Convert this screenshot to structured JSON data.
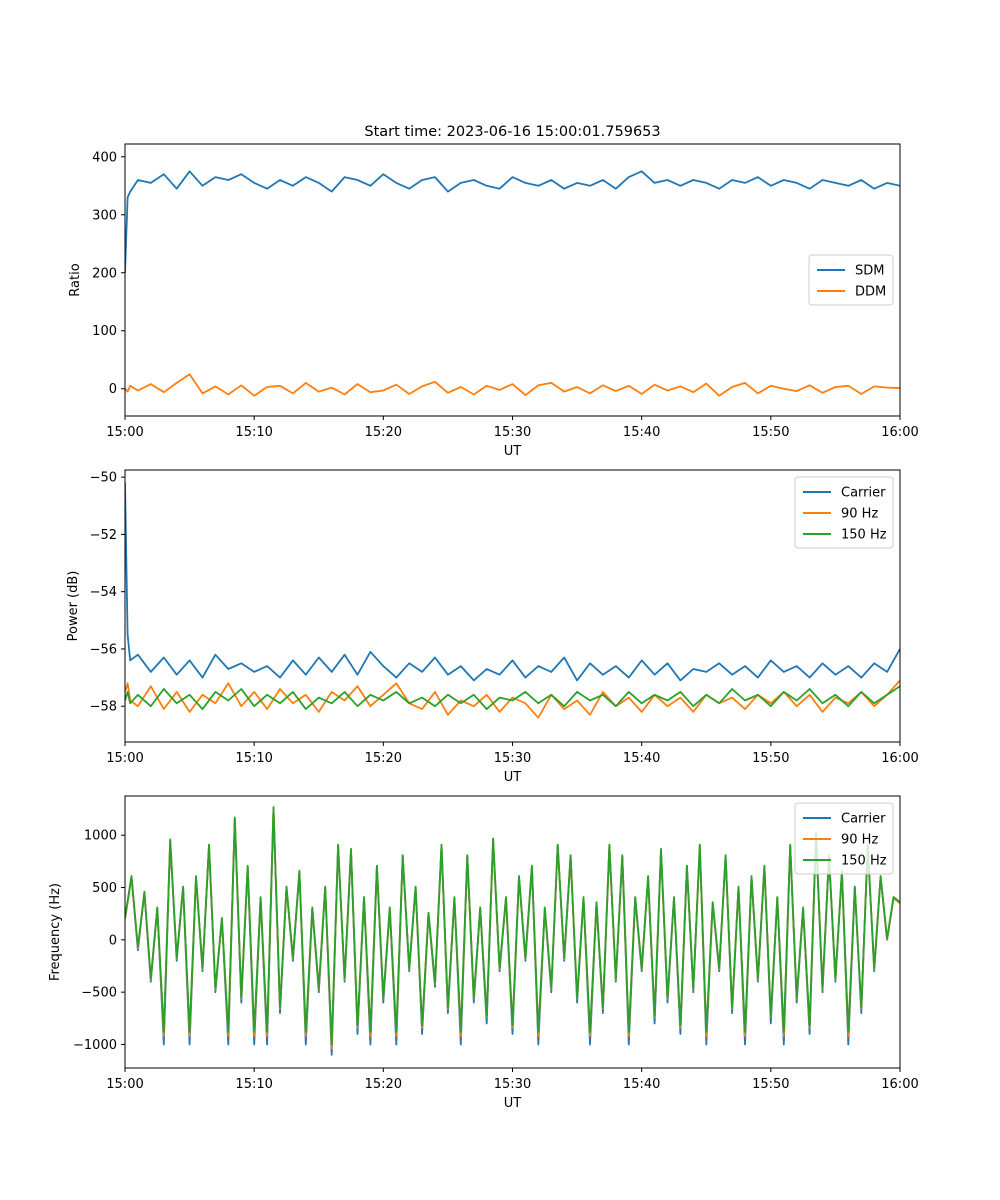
{
  "figure": {
    "title": "Start time: 2023-06-16 15:00:01.759653"
  },
  "chart_data": [
    {
      "type": "line",
      "title": "Start time: 2023-06-16 15:00:01.759653",
      "xlabel": "UT",
      "ylabel": "Ratio",
      "xlim": [
        "15:00",
        "16:00"
      ],
      "ylim": [
        -47,
        422
      ],
      "xticks": [
        "15:00",
        "15:10",
        "15:20",
        "15:30",
        "15:40",
        "15:50",
        "16:00"
      ],
      "yticks": [
        400,
        300,
        200,
        100,
        0
      ],
      "ytick_labels": [
        "400",
        "300",
        "200",
        "100",
        "0"
      ],
      "legend": {
        "position": "center-right"
      },
      "x_minutes": [
        0,
        0.2,
        0.4,
        1,
        2,
        3,
        4,
        5,
        6,
        7,
        8,
        9,
        10,
        11,
        12,
        13,
        14,
        15,
        16,
        17,
        18,
        19,
        20,
        21,
        22,
        23,
        24,
        25,
        26,
        27,
        28,
        29,
        30,
        31,
        32,
        33,
        34,
        35,
        36,
        37,
        38,
        39,
        40,
        41,
        42,
        43,
        44,
        45,
        46,
        47,
        48,
        49,
        50,
        51,
        52,
        53,
        54,
        55,
        56,
        57,
        58,
        59,
        60
      ],
      "series": [
        {
          "name": "SDM",
          "color": "#1f77b4",
          "values": [
            200,
            330,
            340,
            360,
            355,
            370,
            345,
            375,
            350,
            365,
            360,
            370,
            355,
            345,
            360,
            350,
            365,
            355,
            340,
            365,
            360,
            350,
            370,
            355,
            345,
            360,
            365,
            340,
            355,
            360,
            350,
            345,
            365,
            355,
            350,
            360,
            345,
            355,
            350,
            360,
            345,
            365,
            375,
            355,
            360,
            350,
            360,
            355,
            345,
            360,
            355,
            365,
            350,
            360,
            355,
            345,
            360,
            355,
            350,
            360,
            345,
            355,
            350
          ]
        },
        {
          "name": "DDM",
          "color": "#ff7f0e",
          "values": [
            0,
            -5,
            5,
            -3,
            8,
            -6,
            10,
            25,
            -8,
            4,
            -10,
            6,
            -12,
            3,
            5,
            -8,
            10,
            -5,
            2,
            -10,
            8,
            -6,
            -3,
            7,
            -9,
            4,
            12,
            -7,
            3,
            -10,
            5,
            -2,
            8,
            -11,
            6,
            10,
            -5,
            3,
            -8,
            6,
            -4,
            5,
            -9,
            7,
            -3,
            4,
            -6,
            9,
            -12,
            3,
            10,
            -8,
            5,
            0,
            -4,
            6,
            -7,
            3,
            5,
            -9,
            4,
            2,
            1
          ]
        }
      ]
    },
    {
      "type": "line",
      "xlabel": "UT",
      "ylabel": "Power (dB)",
      "xlim": [
        "15:00",
        "16:00"
      ],
      "ylim": [
        -59.25,
        -49.75
      ],
      "xticks": [
        "15:00",
        "15:10",
        "15:20",
        "15:30",
        "15:40",
        "15:50",
        "16:00"
      ],
      "yticks": [
        -50,
        -52,
        -54,
        -56,
        -58
      ],
      "ytick_labels": [
        "−50",
        "−52",
        "−54",
        "−56",
        "−58"
      ],
      "legend": {
        "position": "top-right"
      },
      "x_minutes": [
        0,
        0.2,
        0.4,
        1,
        2,
        3,
        4,
        5,
        6,
        7,
        8,
        9,
        10,
        11,
        12,
        13,
        14,
        15,
        16,
        17,
        18,
        19,
        20,
        21,
        22,
        23,
        24,
        25,
        26,
        27,
        28,
        29,
        30,
        31,
        32,
        33,
        34,
        35,
        36,
        37,
        38,
        39,
        40,
        41,
        42,
        43,
        44,
        45,
        46,
        47,
        48,
        49,
        50,
        51,
        52,
        53,
        54,
        55,
        56,
        57,
        58,
        59,
        60
      ],
      "series": [
        {
          "name": "Carrier",
          "color": "#1f77b4",
          "values": [
            -50.2,
            -55.5,
            -56.4,
            -56.2,
            -56.8,
            -56.3,
            -56.9,
            -56.4,
            -57.0,
            -56.2,
            -56.7,
            -56.5,
            -56.8,
            -56.6,
            -57.0,
            -56.4,
            -56.9,
            -56.3,
            -56.8,
            -56.2,
            -56.9,
            -56.1,
            -56.6,
            -57.0,
            -56.5,
            -56.8,
            -56.3,
            -56.9,
            -56.6,
            -57.1,
            -56.7,
            -56.9,
            -56.4,
            -57.0,
            -56.6,
            -56.8,
            -56.3,
            -57.1,
            -56.5,
            -56.9,
            -56.6,
            -57.0,
            -56.4,
            -56.9,
            -56.5,
            -57.1,
            -56.7,
            -56.8,
            -56.5,
            -56.9,
            -56.6,
            -57.0,
            -56.4,
            -56.8,
            -56.6,
            -57.0,
            -56.5,
            -56.9,
            -56.6,
            -57.0,
            -56.5,
            -56.8,
            -56.0
          ]
        },
        {
          "name": "90 Hz",
          "color": "#ff7f0e",
          "values": [
            -57.5,
            -57.2,
            -57.8,
            -58.0,
            -57.3,
            -58.1,
            -57.5,
            -58.2,
            -57.6,
            -57.9,
            -57.2,
            -58.0,
            -57.5,
            -58.1,
            -57.4,
            -57.9,
            -57.6,
            -58.2,
            -57.5,
            -57.8,
            -57.3,
            -58.0,
            -57.6,
            -57.2,
            -57.9,
            -58.1,
            -57.5,
            -58.3,
            -57.8,
            -58.0,
            -57.6,
            -58.2,
            -57.7,
            -57.9,
            -58.4,
            -57.6,
            -58.1,
            -57.8,
            -58.3,
            -57.5,
            -58.0,
            -57.7,
            -58.2,
            -57.6,
            -58.0,
            -57.7,
            -58.2,
            -57.6,
            -57.9,
            -57.7,
            -58.1,
            -57.6,
            -57.9,
            -57.5,
            -58.0,
            -57.6,
            -58.2,
            -57.7,
            -57.9,
            -57.5,
            -58.0,
            -57.6,
            -57.1
          ]
        },
        {
          "name": "150 Hz",
          "color": "#2ca02c",
          "values": [
            -57.8,
            -57.5,
            -57.9,
            -57.6,
            -58.0,
            -57.4,
            -57.9,
            -57.6,
            -58.1,
            -57.5,
            -57.8,
            -57.4,
            -58.0,
            -57.6,
            -57.9,
            -57.5,
            -58.1,
            -57.7,
            -57.9,
            -57.5,
            -58.0,
            -57.6,
            -57.8,
            -57.5,
            -57.9,
            -57.7,
            -58.0,
            -57.6,
            -57.9,
            -57.6,
            -58.1,
            -57.7,
            -57.8,
            -57.5,
            -57.9,
            -57.6,
            -58.0,
            -57.5,
            -57.8,
            -57.6,
            -58.0,
            -57.5,
            -57.9,
            -57.6,
            -57.8,
            -57.5,
            -58.0,
            -57.6,
            -57.9,
            -57.4,
            -57.8,
            -57.6,
            -58.0,
            -57.5,
            -57.8,
            -57.4,
            -57.9,
            -57.6,
            -58.0,
            -57.5,
            -57.9,
            -57.6,
            -57.3
          ]
        }
      ]
    },
    {
      "type": "line",
      "xlabel": "UT",
      "ylabel": "Frequency (Hz)",
      "xlim": [
        "15:00",
        "16:00"
      ],
      "ylim": [
        -1225,
        1375
      ],
      "xticks": [
        "15:00",
        "15:10",
        "15:20",
        "15:30",
        "15:40",
        "15:50",
        "16:00"
      ],
      "yticks": [
        1000,
        500,
        0,
        -500,
        -1000
      ],
      "ytick_labels": [
        "1000",
        "500",
        "0",
        "−500",
        "−1000"
      ],
      "legend": {
        "position": "top-right"
      },
      "x_minutes": [
        0,
        0.5,
        1,
        1.5,
        2,
        2.5,
        3,
        3.5,
        4,
        4.5,
        5,
        5.5,
        6,
        6.5,
        7,
        7.5,
        8,
        8.5,
        9,
        9.5,
        10,
        10.5,
        11,
        11.5,
        12,
        12.5,
        13,
        13.5,
        14,
        14.5,
        15,
        15.5,
        16,
        16.5,
        17,
        17.5,
        18,
        18.5,
        19,
        19.5,
        20,
        20.5,
        21,
        21.5,
        22,
        22.5,
        23,
        23.5,
        24,
        24.5,
        25,
        25.5,
        26,
        26.5,
        27,
        27.5,
        28,
        28.5,
        29,
        29.5,
        30,
        30.5,
        31,
        31.5,
        32,
        32.5,
        33,
        33.5,
        34,
        34.5,
        35,
        35.5,
        36,
        36.5,
        37,
        37.5,
        38,
        38.5,
        39,
        39.5,
        40,
        40.5,
        41,
        41.5,
        42,
        42.5,
        43,
        43.5,
        44,
        44.5,
        45,
        45.5,
        46,
        46.5,
        47,
        47.5,
        48,
        48.5,
        49,
        49.5,
        50,
        50.5,
        51,
        51.5,
        52,
        52.5,
        53,
        53.5,
        54,
        54.5,
        55,
        55.5,
        56,
        56.5,
        57,
        57.5,
        58,
        58.5,
        59,
        59.5,
        60
      ],
      "series": [
        {
          "name": "Carrier",
          "color": "#1f77b4",
          "values": [
            200,
            600,
            -100,
            450,
            -400,
            300,
            -1000,
            950,
            -200,
            500,
            -1000,
            600,
            -300,
            900,
            -500,
            200,
            -1000,
            1150,
            -600,
            700,
            -1000,
            400,
            -1000,
            1250,
            -700,
            500,
            -200,
            650,
            -1000,
            300,
            -500,
            500,
            -1100,
            900,
            -400,
            850,
            -900,
            400,
            -1000,
            700,
            -600,
            300,
            -1000,
            800,
            -300,
            500,
            -900,
            250,
            -450,
            900,
            -700,
            400,
            -1000,
            800,
            -600,
            300,
            -800,
            950,
            -300,
            400,
            -900,
            600,
            -200,
            700,
            -1000,
            300,
            -500,
            900,
            -200,
            800,
            -600,
            400,
            -1000,
            350,
            -700,
            900,
            -400,
            800,
            -1000,
            400,
            -300,
            600,
            -800,
            850,
            -600,
            400,
            -900,
            700,
            -500,
            900,
            -1000,
            350,
            -300,
            800,
            -700,
            500,
            -1000,
            600,
            -400,
            700,
            -800,
            400,
            -1000,
            900,
            -600,
            300,
            -900,
            1000,
            -500,
            800,
            -400,
            650,
            -1000,
            500,
            -700,
            900,
            -300,
            600,
            0,
            400,
            350
          ]
        },
        {
          "name": "90 Hz",
          "color": "#ff7f0e",
          "values": [
            200,
            600,
            -80,
            450,
            -380,
            300,
            -920,
            950,
            -180,
            500,
            -920,
            600,
            -280,
            900,
            -470,
            200,
            -920,
            1160,
            -560,
            700,
            -920,
            400,
            -920,
            1260,
            -660,
            500,
            -180,
            650,
            -920,
            300,
            -470,
            500,
            -1040,
            900,
            -380,
            860,
            -840,
            400,
            -920,
            700,
            -560,
            300,
            -920,
            800,
            -280,
            500,
            -840,
            250,
            -420,
            900,
            -660,
            400,
            -920,
            800,
            -560,
            300,
            -740,
            960,
            -280,
            400,
            -840,
            600,
            -180,
            700,
            -920,
            300,
            -470,
            900,
            -180,
            800,
            -560,
            400,
            -920,
            350,
            -660,
            900,
            -380,
            800,
            -920,
            400,
            -280,
            600,
            -740,
            860,
            -560,
            400,
            -840,
            700,
            -470,
            900,
            -920,
            350,
            -280,
            800,
            -660,
            500,
            -920,
            600,
            -380,
            700,
            -740,
            400,
            -920,
            900,
            -560,
            300,
            -840,
            1010,
            -470,
            800,
            -380,
            650,
            -920,
            500,
            -660,
            900,
            -280,
            600,
            0,
            400,
            350
          ]
        },
        {
          "name": "150 Hz",
          "color": "#2ca02c",
          "values": [
            210,
            610,
            -70,
            460,
            -370,
            310,
            -880,
            960,
            -170,
            510,
            -880,
            610,
            -270,
            910,
            -460,
            210,
            -880,
            1170,
            -550,
            710,
            -880,
            410,
            -880,
            1270,
            -650,
            510,
            -170,
            660,
            -880,
            310,
            -460,
            510,
            -1000,
            910,
            -370,
            870,
            -820,
            410,
            -880,
            710,
            -550,
            310,
            -880,
            810,
            -270,
            510,
            -820,
            260,
            -410,
            910,
            -650,
            410,
            -880,
            810,
            -550,
            310,
            -730,
            970,
            -270,
            410,
            -820,
            610,
            -170,
            710,
            -880,
            310,
            -460,
            910,
            -170,
            810,
            -550,
            410,
            -880,
            360,
            -650,
            910,
            -370,
            810,
            -880,
            410,
            -270,
            610,
            -730,
            870,
            -550,
            410,
            -820,
            710,
            -460,
            910,
            -880,
            360,
            -270,
            810,
            -650,
            510,
            -880,
            610,
            -370,
            710,
            -730,
            410,
            -880,
            910,
            -550,
            310,
            -820,
            1020,
            -460,
            810,
            -370,
            660,
            -880,
            510,
            -650,
            910,
            -270,
            610,
            10,
            410,
            360
          ]
        }
      ]
    }
  ]
}
